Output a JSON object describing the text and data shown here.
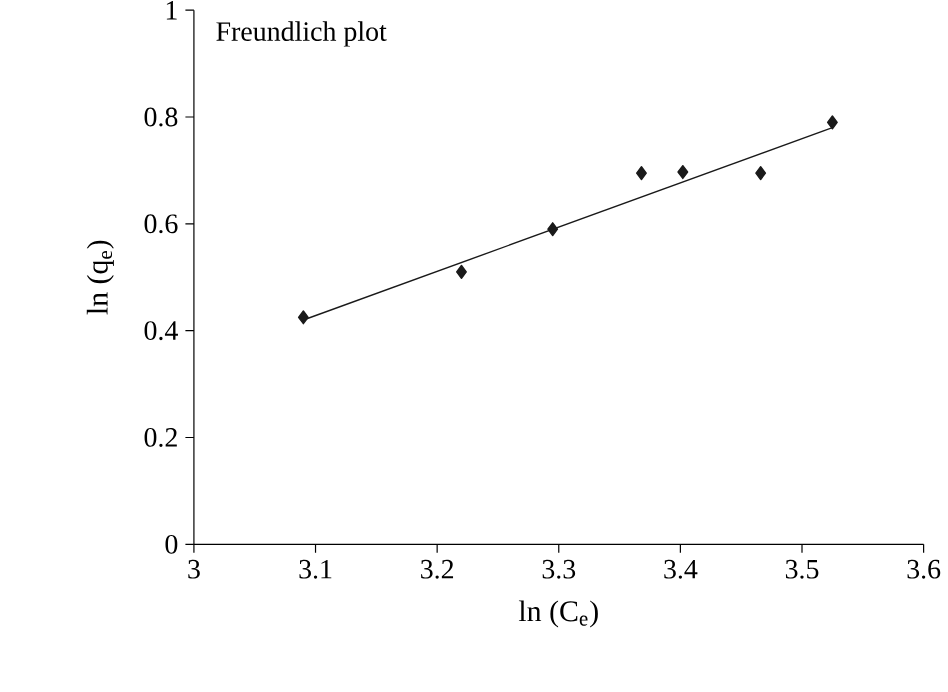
{
  "chart_data": {
    "type": "scatter",
    "title": "Freundlich plot",
    "xlabel": "ln (C$_{e}$)",
    "ylabel": "ln (q$_{e}$)",
    "series": [
      {
        "color": "#1a1a1a",
        "marker": "diamond",
        "x": [
          3.09,
          3.22,
          3.295,
          3.368,
          3.402,
          3.466,
          3.525
        ],
        "values": [
          0.425,
          0.51,
          0.59,
          0.695,
          0.697,
          0.695,
          0.79
        ]
      },
      {
        "type": "line",
        "color": "#1a1a1a",
        "marker": "none",
        "x": [
          3.09,
          3.525
        ],
        "values": [
          0.42,
          0.78
        ]
      }
    ],
    "xlim": [
      3,
      3.6
    ],
    "ylim": [
      0,
      1
    ],
    "xticks": [
      3,
      3.1,
      3.2,
      3.3,
      3.4,
      3.5,
      3.6
    ],
    "yticks": [
      0,
      0.2,
      0.4,
      0.6,
      0.8,
      1
    ],
    "grid": false
  }
}
